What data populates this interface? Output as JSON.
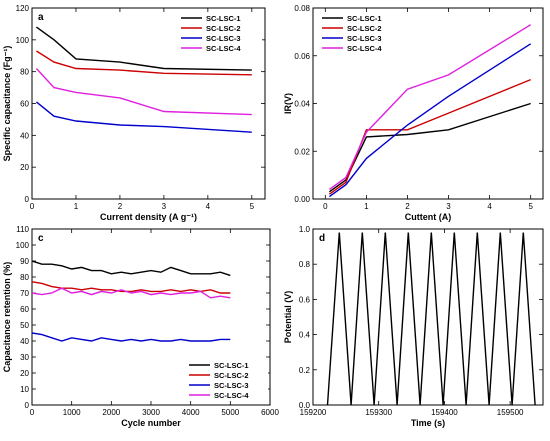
{
  "chart_data": [
    {
      "panel": "a",
      "type": "line",
      "xlabel": "Current density (A g⁻¹)",
      "ylabel": "Specific capacitance (Fg⁻¹)",
      "xlim": [
        0,
        5.3
      ],
      "ylim": [
        0,
        120
      ],
      "xticks": [
        0,
        1,
        2,
        3,
        4,
        5
      ],
      "yticks": [
        0,
        20,
        40,
        60,
        80,
        100,
        120
      ],
      "legend": "top-right",
      "series": [
        {
          "name": "SC-LSC-1",
          "color": "#000000",
          "x": [
            0.1,
            0.5,
            1,
            2,
            3,
            5
          ],
          "y": [
            108,
            100,
            88,
            86,
            82,
            81
          ]
        },
        {
          "name": "SC-LSC-2",
          "color": "#cc0000",
          "x": [
            0.1,
            0.5,
            1,
            2,
            3,
            5
          ],
          "y": [
            93,
            86,
            82,
            81,
            79,
            78
          ]
        },
        {
          "name": "SC-LSC-3",
          "color": "#0000cc",
          "x": [
            0.1,
            0.5,
            1,
            2,
            3,
            5
          ],
          "y": [
            61,
            52,
            49,
            46.5,
            45.5,
            42
          ]
        },
        {
          "name": "SC-LSC-4",
          "color": "#e020e0",
          "x": [
            0.1,
            0.5,
            1,
            2,
            3,
            5
          ],
          "y": [
            82,
            70,
            67,
            63.5,
            55,
            53
          ]
        }
      ]
    },
    {
      "panel": "b",
      "type": "line",
      "xlabel": "Cuttent (A)",
      "ylabel": "IR(V)",
      "xlim": [
        -0.3,
        5.3
      ],
      "ylim": [
        0,
        0.08
      ],
      "xticks": [
        0,
        1,
        2,
        3,
        4,
        5
      ],
      "yticks": [
        0.0,
        0.02,
        0.04,
        0.06,
        0.08
      ],
      "ytick_labels": [
        "0.00",
        "0.02",
        "0.04",
        "0.06",
        "0.08"
      ],
      "legend": "top-left",
      "series": [
        {
          "name": "SC-LSC-1",
          "color": "#000000",
          "x": [
            0.1,
            0.5,
            1,
            2,
            3,
            5
          ],
          "y": [
            0.003,
            0.008,
            0.026,
            0.027,
            0.029,
            0.04
          ]
        },
        {
          "name": "SC-LSC-2",
          "color": "#cc0000",
          "x": [
            0.1,
            0.5,
            1,
            2,
            3,
            5
          ],
          "y": [
            0.002,
            0.007,
            0.029,
            0.029,
            0.036,
            0.05
          ]
        },
        {
          "name": "SC-LSC-3",
          "color": "#0000cc",
          "x": [
            0.1,
            0.5,
            1,
            2,
            3,
            5
          ],
          "y": [
            0.001,
            0.006,
            0.017,
            0.031,
            0.043,
            0.065
          ]
        },
        {
          "name": "SC-LSC-4",
          "color": "#e020e0",
          "x": [
            0.1,
            0.5,
            1,
            2,
            3,
            5
          ],
          "y": [
            0.004,
            0.009,
            0.028,
            0.046,
            0.052,
            0.073
          ]
        }
      ]
    },
    {
      "panel": "c",
      "type": "line",
      "xlabel": "Cycle number",
      "ylabel": "Capacitance retention (%)",
      "xlim": [
        0,
        6000
      ],
      "ylim": [
        0,
        110
      ],
      "xticks": [
        0,
        1000,
        2000,
        3000,
        4000,
        5000,
        6000
      ],
      "yticks": [
        0,
        10,
        20,
        30,
        40,
        50,
        60,
        70,
        80,
        90,
        100,
        110
      ],
      "legend": "bottom-right",
      "series": [
        {
          "name": "SC-LSC-1",
          "color": "#000000",
          "x": [
            0,
            250,
            500,
            750,
            1000,
            1250,
            1500,
            1750,
            2000,
            2250,
            2500,
            2750,
            3000,
            3250,
            3500,
            3750,
            4000,
            4250,
            4500,
            4750,
            5000
          ],
          "y": [
            90,
            88,
            88,
            87,
            85,
            86,
            84,
            84,
            82,
            83,
            82,
            83,
            84,
            83,
            86,
            84,
            82,
            82,
            82,
            83,
            81
          ]
        },
        {
          "name": "SC-LSC-2",
          "color": "#cc0000",
          "x": [
            0,
            250,
            500,
            750,
            1000,
            1250,
            1500,
            1750,
            2000,
            2250,
            2500,
            2750,
            3000,
            3250,
            3500,
            3750,
            4000,
            4250,
            4500,
            4750,
            5000
          ],
          "y": [
            77,
            76,
            74,
            73,
            73,
            72,
            73,
            72,
            72,
            71,
            71,
            72,
            71,
            71,
            72,
            71,
            72,
            71,
            72,
            70,
            70
          ]
        },
        {
          "name": "SC-LSC-3",
          "color": "#0000cc",
          "x": [
            0,
            250,
            500,
            750,
            1000,
            1250,
            1500,
            1750,
            2000,
            2250,
            2500,
            2750,
            3000,
            3250,
            3500,
            3750,
            4000,
            4250,
            4500,
            4750,
            5000
          ],
          "y": [
            45,
            44,
            42,
            40,
            42,
            41,
            40,
            42,
            41,
            40,
            41,
            40,
            41,
            40,
            40,
            41,
            40,
            40,
            40,
            41,
            41
          ]
        },
        {
          "name": "SC-LSC-4",
          "color": "#e020e0",
          "x": [
            0,
            250,
            500,
            750,
            1000,
            1250,
            1500,
            1750,
            2000,
            2250,
            2500,
            2750,
            3000,
            3250,
            3500,
            3750,
            4000,
            4250,
            4500,
            4750,
            5000
          ],
          "y": [
            70,
            69,
            70,
            73,
            70,
            71,
            69,
            71,
            70,
            72,
            70,
            71,
            69,
            70,
            69,
            70,
            70,
            71,
            67,
            68,
            67
          ]
        }
      ]
    },
    {
      "panel": "d",
      "type": "line",
      "xlabel": "Time (s)",
      "ylabel": "Potential (V)",
      "xlim": [
        159200,
        159550
      ],
      "ylim": [
        0,
        1.0
      ],
      "xticks": [
        159200,
        159300,
        159400,
        159500
      ],
      "yticks": [
        0.0,
        0.2,
        0.4,
        0.6,
        0.8,
        1.0
      ],
      "ytick_labels": [
        "0.0",
        "0.2",
        "0.4",
        "0.6",
        "0.8",
        "1.0"
      ],
      "legend": "none",
      "series": [
        {
          "name": "",
          "color": "#000000",
          "x": [
            159222,
            159240,
            159258,
            159275,
            159293,
            159310,
            159328,
            159345,
            159363,
            159380,
            159398,
            159415,
            159433,
            159450,
            159468,
            159485,
            159503,
            159520,
            159538
          ],
          "y": [
            0,
            0.98,
            0,
            0.98,
            0,
            0.98,
            0,
            0.98,
            0,
            0.98,
            0,
            0.98,
            0,
            0.98,
            0,
            0.98,
            0,
            0.98,
            0
          ]
        }
      ]
    }
  ]
}
